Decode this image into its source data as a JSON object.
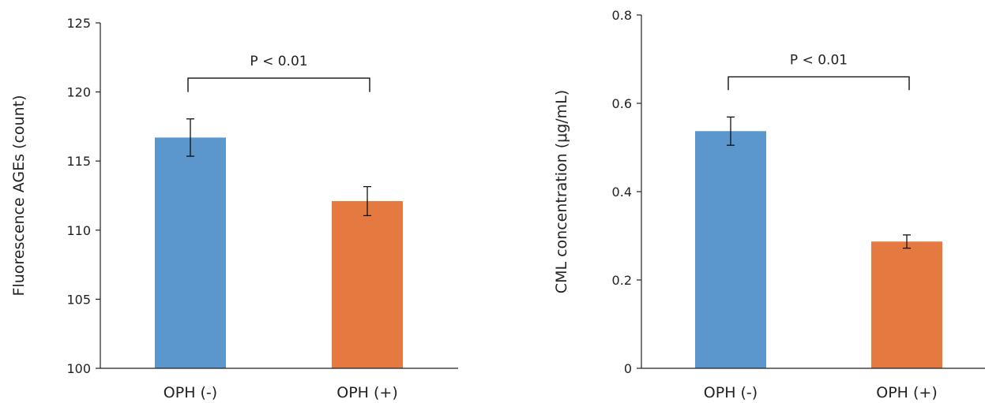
{
  "chart_data": [
    {
      "type": "bar",
      "title": "",
      "xlabel": "",
      "ylabel": "Fluorescence AGEs (count)",
      "categories": [
        "OPH (-)",
        "OPH (+)"
      ],
      "values": [
        116.7,
        112.1
      ],
      "errors": [
        1.35,
        1.05
      ],
      "ylim": [
        100,
        125
      ],
      "yticks": [
        100,
        105,
        110,
        115,
        120,
        125
      ],
      "ytick_labels": [
        "100",
        "105",
        "110",
        "115",
        "120",
        "125"
      ],
      "colors": [
        "#5B96CC",
        "#E57A40"
      ],
      "annotation": "P < 0.01",
      "annotation_level": 121,
      "annotation_tick_bottom": 120
    },
    {
      "type": "bar",
      "title": "",
      "xlabel": "",
      "ylabel": "CML concentration (μg/mL)",
      "categories": [
        "OPH (-)",
        "OPH (+)"
      ],
      "values": [
        0.537,
        0.287
      ],
      "errors": [
        0.032,
        0.015
      ],
      "ylim": [
        0,
        0.8
      ],
      "yticks": [
        0,
        0.2,
        0.4,
        0.6,
        0.8
      ],
      "ytick_labels": [
        "0",
        "0.2",
        "0.4",
        "0.6",
        "0.8"
      ],
      "colors": [
        "#5B96CC",
        "#E57A40"
      ],
      "annotation": "P < 0.01",
      "annotation_level": 0.66,
      "annotation_tick_bottom": 0.63
    }
  ]
}
